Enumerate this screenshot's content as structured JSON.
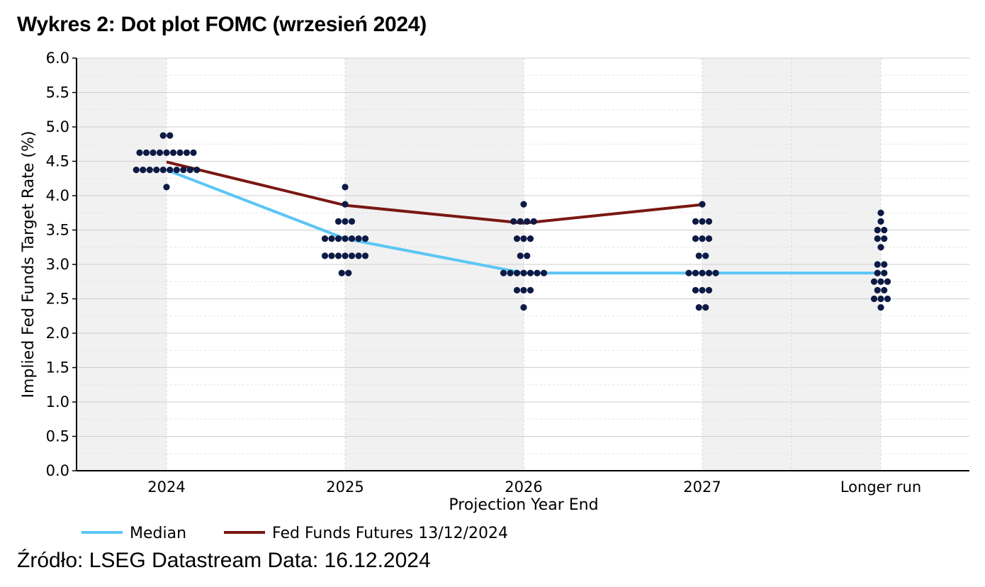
{
  "title": "Wykres 2: Dot plot FOMC (wrzesień 2024)",
  "source": "Źródło: LSEG Datastream Data: 16.12.2024",
  "chart_data": {
    "type": "scatter",
    "title": "Wykres 2: Dot plot FOMC (wrzesień 2024)",
    "xlabel": "Projection Year End",
    "ylabel": "Implied Fed Funds Target Rate (%)",
    "ylim": [
      0,
      6
    ],
    "y_ticks": [
      "0.0",
      "0.5",
      "1.0",
      "1.5",
      "2.0",
      "2.5",
      "3.0",
      "3.5",
      "4.0",
      "4.5",
      "5.0",
      "5.5",
      "6.0"
    ],
    "categories": [
      "2024",
      "2025",
      "2026",
      "2027",
      "Longer run"
    ],
    "grid": true,
    "legend_position": "bottom-left",
    "dots": [
      {
        "category": "2024",
        "levels": [
          {
            "y": 4.875,
            "count": 2
          },
          {
            "y": 4.625,
            "count": 9
          },
          {
            "y": 4.375,
            "count": 10
          },
          {
            "y": 4.125,
            "count": 1
          }
        ]
      },
      {
        "category": "2025",
        "levels": [
          {
            "y": 4.125,
            "count": 1
          },
          {
            "y": 3.875,
            "count": 1
          },
          {
            "y": 3.625,
            "count": 3
          },
          {
            "y": 3.375,
            "count": 7
          },
          {
            "y": 3.125,
            "count": 7
          },
          {
            "y": 2.875,
            "count": 2
          }
        ]
      },
      {
        "category": "2026",
        "levels": [
          {
            "y": 3.875,
            "count": 1
          },
          {
            "y": 3.625,
            "count": 4
          },
          {
            "y": 3.375,
            "count": 3
          },
          {
            "y": 3.125,
            "count": 2
          },
          {
            "y": 2.875,
            "count": 7
          },
          {
            "y": 2.625,
            "count": 3
          },
          {
            "y": 2.375,
            "count": 1
          }
        ]
      },
      {
        "category": "2027",
        "levels": [
          {
            "y": 3.875,
            "count": 1
          },
          {
            "y": 3.625,
            "count": 3
          },
          {
            "y": 3.375,
            "count": 3
          },
          {
            "y": 3.125,
            "count": 2
          },
          {
            "y": 2.875,
            "count": 5
          },
          {
            "y": 2.625,
            "count": 3
          },
          {
            "y": 2.375,
            "count": 2
          }
        ]
      },
      {
        "category": "Longer run",
        "levels": [
          {
            "y": 3.75,
            "count": 1
          },
          {
            "y": 3.625,
            "count": 1
          },
          {
            "y": 3.5,
            "count": 2
          },
          {
            "y": 3.375,
            "count": 2
          },
          {
            "y": 3.25,
            "count": 1
          },
          {
            "y": 3.0,
            "count": 2
          },
          {
            "y": 2.875,
            "count": 2
          },
          {
            "y": 2.75,
            "count": 3
          },
          {
            "y": 2.625,
            "count": 2
          },
          {
            "y": 2.5,
            "count": 3
          },
          {
            "y": 2.375,
            "count": 1
          }
        ]
      }
    ],
    "series": [
      {
        "name": "Median",
        "color": "#5bc6f5",
        "categories": [
          "2024",
          "2025",
          "2026",
          "2027",
          "Longer run"
        ],
        "values": [
          4.375,
          3.375,
          2.875,
          2.875,
          2.875
        ]
      },
      {
        "name": "Fed Funds Futures 13/12/2024",
        "color": "#7a1712",
        "categories": [
          "2024",
          "2025",
          "2026",
          "2027"
        ],
        "values": [
          4.49,
          3.86,
          3.6,
          3.87
        ]
      }
    ],
    "dot_color": "#0d1a45"
  }
}
